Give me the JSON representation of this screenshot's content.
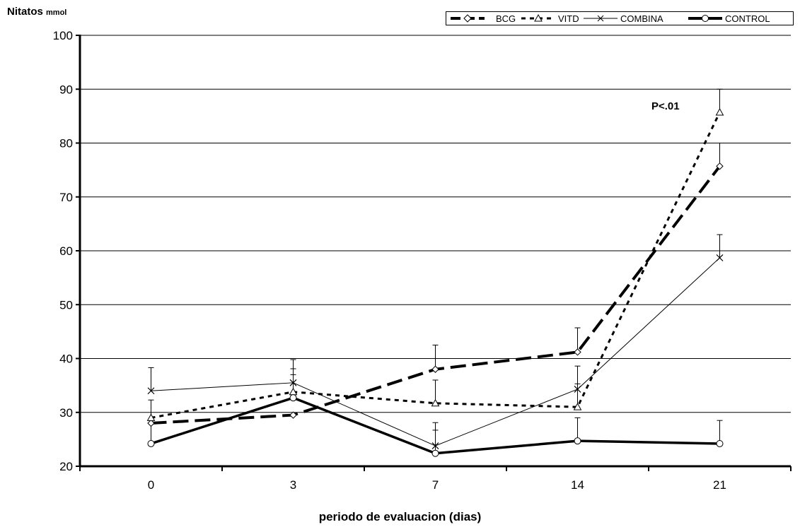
{
  "chart_data": {
    "type": "line",
    "ylabel": "Nitatos",
    "ylabel_unit": "mmol",
    "xlabel": "periodo de evaluacion (dias)",
    "categories": [
      "0",
      "3",
      "7",
      "14",
      "21"
    ],
    "ylim": [
      20,
      100
    ],
    "yticks": [
      20,
      30,
      40,
      50,
      60,
      70,
      80,
      90,
      100
    ],
    "grid": "horizontal",
    "legend_position": "top-right",
    "annotation": "P<.01",
    "series": [
      {
        "name": "BCG",
        "values": [
          28,
          29.5,
          38,
          41.2,
          75.7
        ],
        "err": [
          0,
          0,
          4.5,
          4.5,
          4.3
        ],
        "marker": "diamond",
        "style": "long-dash",
        "width": 4,
        "color": "#000000"
      },
      {
        "name": "VITD",
        "values": [
          29,
          33.8,
          31.7,
          31,
          85.7
        ],
        "err": [
          3.3,
          4.3,
          4.3,
          4.3,
          4.3
        ],
        "marker": "triangle",
        "style": "short-dash",
        "width": 3,
        "color": "#000000"
      },
      {
        "name": "COMBINA",
        "values": [
          34,
          35.5,
          23.8,
          34.3,
          58.7
        ],
        "err": [
          4.3,
          4.3,
          4.3,
          4.3,
          4.3
        ],
        "marker": "x",
        "style": "solid",
        "width": 1,
        "color": "#000000"
      },
      {
        "name": "CONTROL",
        "values": [
          24.2,
          32.7,
          22.4,
          24.7,
          24.2
        ],
        "err": [
          4.3,
          4.3,
          4.3,
          4.3,
          4.3
        ],
        "marker": "circle",
        "style": "solid",
        "width": 3.5,
        "color": "#000000"
      }
    ]
  }
}
